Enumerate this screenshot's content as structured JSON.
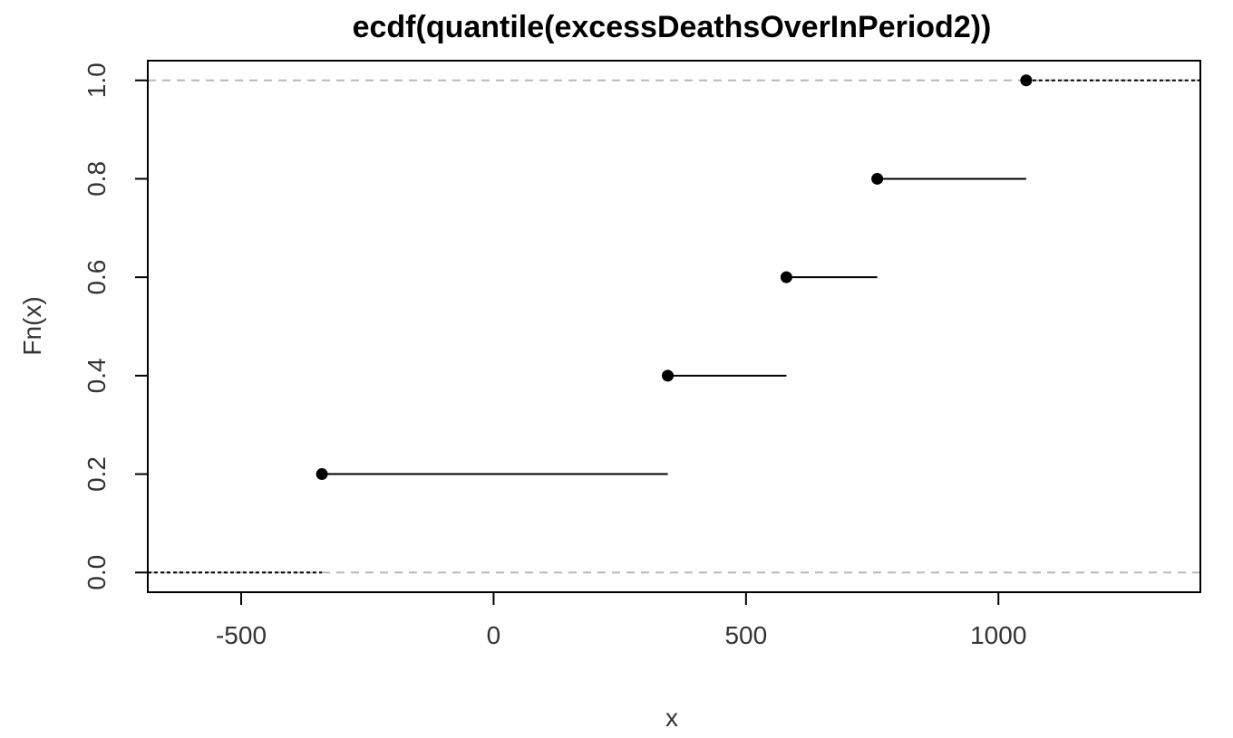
{
  "chart_data": {
    "type": "step",
    "title": "ecdf(quantile(excessDeathsOverInPeriod2))",
    "xlabel": "x",
    "ylabel": "Fn(x)",
    "xlim": [
      -685,
      1400
    ],
    "ylim": [
      -0.04,
      1.04
    ],
    "xticks": [
      -500,
      0,
      500,
      1000
    ],
    "xtick_labels": [
      "-500",
      "0",
      "500",
      "1000"
    ],
    "yticks": [
      0.0,
      0.2,
      0.4,
      0.6,
      0.8,
      1.0
    ],
    "ytick_labels": [
      "0.0",
      "0.2",
      "0.4",
      "0.6",
      "0.8",
      "1.0"
    ],
    "reference_lines_y": [
      0,
      1
    ],
    "points": [
      {
        "x": -340,
        "y": 0.2
      },
      {
        "x": 345,
        "y": 0.4
      },
      {
        "x": 580,
        "y": 0.6
      },
      {
        "x": 760,
        "y": 0.8
      },
      {
        "x": 1055,
        "y": 1.0
      }
    ],
    "left_tail": {
      "from": -685,
      "y": 0.0
    },
    "right_tail": {
      "to": 1400,
      "y": 1.0
    },
    "grid": false,
    "legend": "none"
  }
}
